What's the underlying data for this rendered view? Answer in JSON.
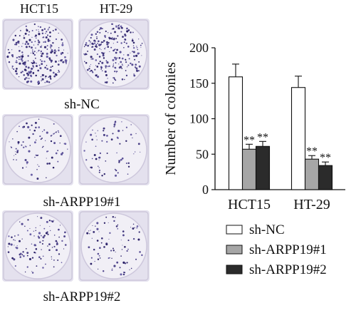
{
  "images": {
    "columns": [
      "HCT15",
      "HT-29"
    ],
    "rows": [
      "sh-NC",
      "sh-ARPP19#1",
      "sh-ARPP19#2"
    ]
  },
  "chart_data": {
    "type": "bar",
    "categories": [
      "HCT15",
      "HT-29"
    ],
    "ylabel": "Number of colonies",
    "xlabel": "",
    "ylim": [
      0,
      200
    ],
    "yticks": [
      0,
      50,
      100,
      150,
      200
    ],
    "legend_position": "bottom",
    "series": [
      {
        "name": "sh-NC",
        "color": "#ffffff",
        "values": [
          159,
          144
        ],
        "errors": [
          18,
          16
        ],
        "annotations": [
          "",
          ""
        ]
      },
      {
        "name": "sh-ARPP19#1",
        "color": "#a6a6a6",
        "values": [
          57,
          43
        ],
        "errors": [
          7,
          5
        ],
        "annotations": [
          "**",
          "**"
        ]
      },
      {
        "name": "sh-ARPP19#2",
        "color": "#2b2b2b",
        "values": [
          61,
          34
        ],
        "errors": [
          7,
          5
        ],
        "annotations": [
          "**",
          "**"
        ]
      }
    ]
  }
}
